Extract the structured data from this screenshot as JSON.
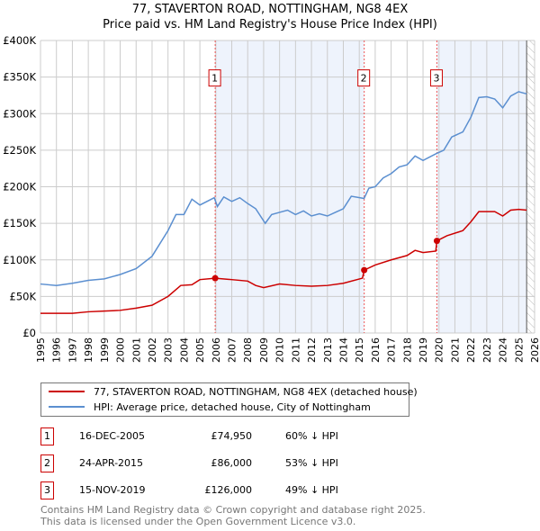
{
  "chart_data": {
    "type": "line",
    "title": "77, STAVERTON ROAD, NOTTINGHAM, NG8 4EX",
    "subtitle": "Price paid vs. HM Land Registry's House Price Index (HPI)",
    "xlim": [
      1995,
      2026
    ],
    "ylim": [
      0,
      400000
    ],
    "x_ticks": [
      "1995",
      "1996",
      "1997",
      "1998",
      "1999",
      "2000",
      "2001",
      "2002",
      "2003",
      "2004",
      "2005",
      "2006",
      "2007",
      "2008",
      "2009",
      "2010",
      "2011",
      "2012",
      "2013",
      "2014",
      "2015",
      "2016",
      "2017",
      "2018",
      "2019",
      "2020",
      "2021",
      "2022",
      "2023",
      "2024",
      "2025",
      "2026"
    ],
    "y_ticks": [
      {
        "v": 0,
        "label": "£0"
      },
      {
        "v": 50000,
        "label": "£50K"
      },
      {
        "v": 100000,
        "label": "£100K"
      },
      {
        "v": 150000,
        "label": "£150K"
      },
      {
        "v": 200000,
        "label": "£200K"
      },
      {
        "v": 250000,
        "label": "£250K"
      },
      {
        "v": 300000,
        "label": "£300K"
      },
      {
        "v": 350000,
        "label": "£350K"
      },
      {
        "v": 400000,
        "label": "£400K"
      }
    ],
    "grid": true,
    "series": [
      {
        "name": "77, STAVERTON ROAD, NOTTINGHAM, NG8 4EX (detached house)",
        "color": "#cc0000",
        "x": [
          1995,
          1996,
          1997,
          1998,
          1999,
          2000,
          2001,
          2002,
          2003,
          2003.8,
          2004.5,
          2005,
          2005.96,
          2007,
          2008,
          2008.5,
          2009,
          2010,
          2011,
          2012,
          2013,
          2014,
          2015.2,
          2015.31,
          2016,
          2017,
          2018,
          2018.5,
          2019,
          2019.8,
          2019.87,
          2020.5,
          2021.5,
          2022,
          2022.5,
          2023.5,
          2024,
          2024.5,
          2025,
          2025.5
        ],
        "y": [
          27000,
          27000,
          27000,
          29000,
          30000,
          31000,
          34000,
          38000,
          50000,
          65000,
          66000,
          73000,
          74950,
          73000,
          71000,
          65000,
          62000,
          67000,
          65000,
          64000,
          65000,
          68000,
          75000,
          86000,
          93000,
          100000,
          106000,
          113000,
          110000,
          112000,
          126000,
          133000,
          140000,
          152000,
          166000,
          166000,
          160000,
          168000,
          169000,
          168000
        ]
      },
      {
        "name": "HPI: Average price, detached house, City of Nottingham",
        "color": "#5b8fd0",
        "x": [
          1995,
          1996,
          1997,
          1998,
          1999,
          2000,
          2001,
          2002,
          2003,
          2003.5,
          2004,
          2004.5,
          2005,
          2005.9,
          2006.1,
          2006.5,
          2007,
          2007.5,
          2008,
          2008.5,
          2009.1,
          2009.5,
          2010,
          2010.5,
          2011,
          2011.5,
          2012,
          2012.5,
          2013,
          2013.5,
          2014,
          2014.5,
          2015.3,
          2015.6,
          2016,
          2016.5,
          2017,
          2017.5,
          2018,
          2018.5,
          2019,
          2019.8,
          2020.3,
          2020.8,
          2021.5,
          2022,
          2022.5,
          2023,
          2023.5,
          2024,
          2024.5,
          2025,
          2025.5
        ],
        "y": [
          67000,
          65000,
          68000,
          72000,
          74000,
          80000,
          88000,
          105000,
          140000,
          162000,
          162000,
          183000,
          175000,
          185000,
          173000,
          186000,
          180000,
          185000,
          177000,
          170000,
          150000,
          162000,
          165000,
          168000,
          162000,
          167000,
          160000,
          163000,
          160000,
          165000,
          170000,
          187000,
          184000,
          198000,
          200000,
          212000,
          218000,
          227000,
          230000,
          242000,
          236000,
          245000,
          250000,
          268000,
          275000,
          295000,
          322000,
          323000,
          320000,
          308000,
          324000,
          330000,
          327000
        ]
      }
    ],
    "sales": [
      {
        "n": "1",
        "x": 2005.96,
        "y": 74950,
        "date": "16-DEC-2005",
        "price": "£74,950",
        "hpi": "60% ↓ HPI"
      },
      {
        "n": "2",
        "x": 2015.31,
        "y": 86000,
        "date": "24-APR-2015",
        "price": "£86,000",
        "hpi": "53% ↓ HPI"
      },
      {
        "n": "3",
        "x": 2019.87,
        "y": 126000,
        "date": "15-NOV-2019",
        "price": "£126,000",
        "hpi": "49% ↓ HPI"
      }
    ],
    "legend_placement": "bottom"
  },
  "footer": {
    "line1": "Contains HM Land Registry data © Crown copyright and database right 2025.",
    "line2": "This data is licensed under the Open Government Licence v3.0."
  }
}
